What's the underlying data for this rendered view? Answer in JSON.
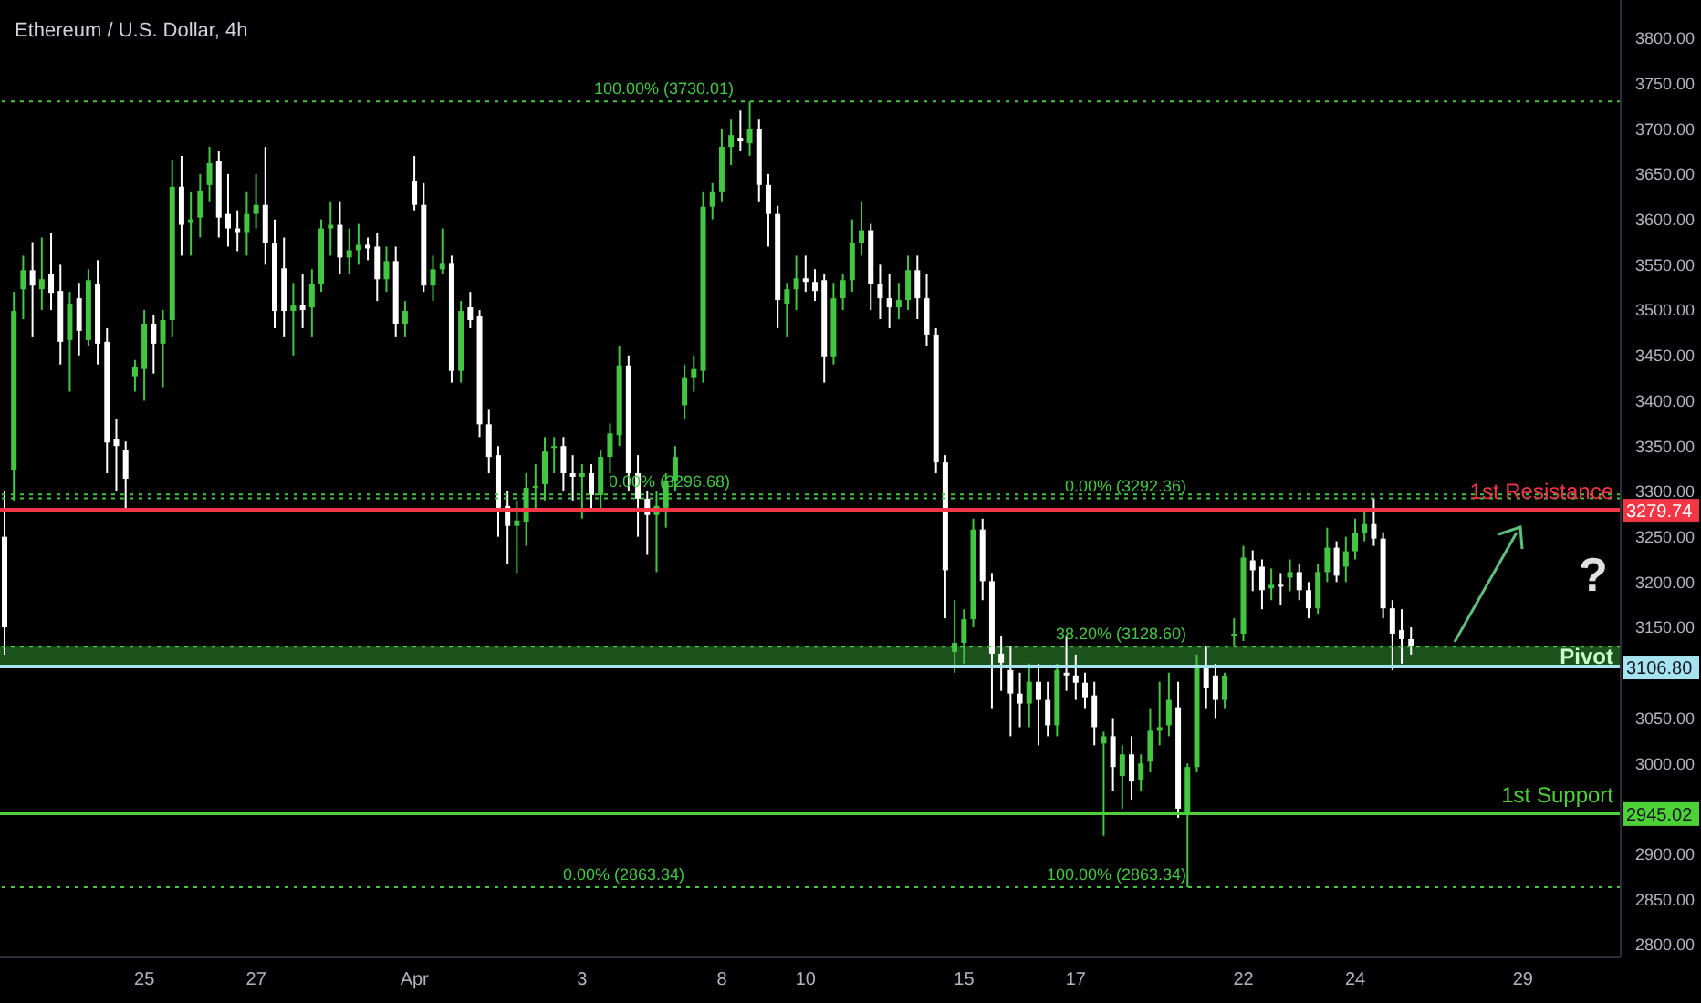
{
  "chart_data": {
    "type": "candlestick",
    "title": "Ethereum / U.S. Dollar, 4h",
    "categories": [
      null,
      null,
      null,
      null,
      null,
      null,
      null,
      null,
      null,
      null,
      null,
      null,
      null,
      null,
      null,
      "25",
      null,
      null,
      null,
      null,
      null,
      null,
      null,
      null,
      null,
      null,
      null,
      "27",
      null,
      null,
      null,
      null,
      null,
      null,
      null,
      null,
      null,
      null,
      null,
      null,
      null,
      null,
      null,
      null,
      "Apr",
      null,
      null,
      null,
      null,
      null,
      null,
      null,
      null,
      null,
      null,
      null,
      null,
      null,
      null,
      null,
      null,
      null,
      "3",
      null,
      null,
      null,
      null,
      null,
      null,
      null,
      null,
      null,
      null,
      null,
      null,
      null,
      null,
      "8",
      null,
      null,
      null,
      null,
      null,
      null,
      null,
      null,
      "10",
      null,
      null,
      null,
      null,
      null,
      null,
      null,
      null,
      null,
      null,
      null,
      null,
      null,
      null,
      null,
      null,
      "15",
      null,
      null,
      null,
      null,
      null,
      null,
      null,
      null,
      null,
      null,
      null,
      "17",
      null,
      null,
      null,
      null,
      null,
      null,
      null,
      null,
      null,
      null,
      null,
      null,
      null,
      null,
      null,
      null,
      null,
      "22",
      null,
      null,
      null,
      null,
      null,
      null,
      null,
      null,
      null,
      null,
      null,
      "24",
      null,
      null,
      null,
      null,
      null,
      null,
      null,
      null,
      null,
      null,
      null,
      null,
      null,
      null,
      null,
      null,
      null,
      "29",
      null,
      null,
      null,
      null,
      null,
      null,
      null,
      null,
      null,
      null
    ],
    "ohlc": [
      [
        3250,
        3300,
        3120,
        3150
      ],
      [
        3324,
        3520,
        3290,
        3499
      ],
      [
        3523,
        3560,
        3490,
        3544
      ],
      [
        3544,
        3575,
        3470,
        3527
      ],
      [
        3523,
        3580,
        3500,
        3534
      ],
      [
        3540,
        3585,
        3500,
        3519
      ],
      [
        3521,
        3550,
        3440,
        3465
      ],
      [
        3467,
        3520,
        3410,
        3507
      ],
      [
        3513,
        3530,
        3450,
        3477
      ],
      [
        3467,
        3545,
        3460,
        3533
      ],
      [
        3529,
        3555,
        3440,
        3463
      ],
      [
        3465,
        3480,
        3320,
        3354
      ],
      [
        3358,
        3380,
        3300,
        3350
      ],
      [
        3346,
        3355,
        3280,
        3314
      ],
      [
        3427,
        3445,
        3410,
        3437
      ],
      [
        3435,
        3500,
        3400,
        3485
      ],
      [
        3485,
        3495,
        3430,
        3463
      ],
      [
        3463,
        3500,
        3415,
        3489
      ],
      [
        3489,
        3665,
        3470,
        3636
      ],
      [
        3636,
        3670,
        3560,
        3594
      ],
      [
        3596,
        3630,
        3560,
        3600
      ],
      [
        3602,
        3650,
        3580,
        3632
      ],
      [
        3638,
        3680,
        3620,
        3662
      ],
      [
        3664,
        3675,
        3580,
        3602
      ],
      [
        3606,
        3650,
        3570,
        3590
      ],
      [
        3590,
        3610,
        3565,
        3586
      ],
      [
        3586,
        3630,
        3560,
        3606
      ],
      [
        3606,
        3650,
        3590,
        3616
      ],
      [
        3616,
        3680,
        3550,
        3574
      ],
      [
        3574,
        3600,
        3480,
        3499
      ],
      [
        3546,
        3580,
        3470,
        3499
      ],
      [
        3499,
        3530,
        3450,
        3505
      ],
      [
        3505,
        3540,
        3480,
        3500
      ],
      [
        3503,
        3545,
        3470,
        3529
      ],
      [
        3529,
        3600,
        3520,
        3590
      ],
      [
        3590,
        3620,
        3560,
        3594
      ],
      [
        3594,
        3620,
        3540,
        3558
      ],
      [
        3558,
        3590,
        3540,
        3566
      ],
      [
        3566,
        3595,
        3550,
        3572
      ],
      [
        3572,
        3580,
        3555,
        3568
      ],
      [
        3570,
        3585,
        3510,
        3534
      ],
      [
        3534,
        3570,
        3520,
        3554
      ],
      [
        3554,
        3570,
        3470,
        3485
      ],
      [
        3485,
        3510,
        3470,
        3499
      ],
      [
        3642,
        3670,
        3610,
        3616
      ],
      [
        3616,
        3640,
        3520,
        3527
      ],
      [
        3527,
        3560,
        3510,
        3545
      ],
      [
        3545,
        3590,
        3540,
        3552
      ],
      [
        3552,
        3560,
        3420,
        3433
      ],
      [
        3433,
        3510,
        3420,
        3499
      ],
      [
        3503,
        3520,
        3480,
        3489
      ],
      [
        3493,
        3500,
        3360,
        3374
      ],
      [
        3374,
        3390,
        3320,
        3338
      ],
      [
        3340,
        3350,
        3250,
        3282
      ],
      [
        3284,
        3300,
        3220,
        3262
      ],
      [
        3262,
        3290,
        3210,
        3268
      ],
      [
        3266,
        3320,
        3240,
        3304
      ],
      [
        3304,
        3330,
        3280,
        3306
      ],
      [
        3308,
        3360,
        3290,
        3344
      ],
      [
        3348,
        3360,
        3320,
        3350
      ],
      [
        3350,
        3360,
        3300,
        3320
      ],
      [
        3320,
        3340,
        3290,
        3316
      ],
      [
        3316,
        3330,
        3270,
        3320
      ],
      [
        3320,
        3330,
        3280,
        3296
      ],
      [
        3296,
        3345,
        3280,
        3338
      ],
      [
        3338,
        3375,
        3320,
        3364
      ],
      [
        3362,
        3460,
        3350,
        3439
      ],
      [
        3439,
        3450,
        3300,
        3320
      ],
      [
        3320,
        3340,
        3250,
        3292
      ],
      [
        3292,
        3300,
        3230,
        3274
      ],
      [
        3274,
        3300,
        3211,
        3284
      ],
      [
        3282,
        3320,
        3260,
        3312
      ],
      [
        3312,
        3350,
        3300,
        3338
      ],
      [
        3395,
        3440,
        3380,
        3425
      ],
      [
        3425,
        3450,
        3410,
        3435
      ],
      [
        3433,
        3630,
        3420,
        3614
      ],
      [
        3614,
        3640,
        3600,
        3630
      ],
      [
        3630,
        3700,
        3620,
        3680
      ],
      [
        3680,
        3710,
        3660,
        3693
      ],
      [
        3690,
        3720,
        3675,
        3686
      ],
      [
        3684,
        3730.01,
        3670,
        3700
      ],
      [
        3700,
        3710,
        3620,
        3638
      ],
      [
        3638,
        3650,
        3570,
        3606
      ],
      [
        3606,
        3615,
        3480,
        3511
      ],
      [
        3507,
        3530,
        3470,
        3523
      ],
      [
        3523,
        3560,
        3500,
        3535
      ],
      [
        3535,
        3560,
        3520,
        3531
      ],
      [
        3531,
        3545,
        3510,
        3521
      ],
      [
        3533,
        3540,
        3420,
        3449
      ],
      [
        3449,
        3530,
        3440,
        3513
      ],
      [
        3513,
        3540,
        3500,
        3533
      ],
      [
        3533,
        3600,
        3520,
        3574
      ],
      [
        3574,
        3620,
        3560,
        3588
      ],
      [
        3588,
        3595,
        3500,
        3529
      ],
      [
        3529,
        3550,
        3490,
        3513
      ],
      [
        3513,
        3540,
        3480,
        3503
      ],
      [
        3503,
        3530,
        3490,
        3511
      ],
      [
        3511,
        3560,
        3500,
        3544
      ],
      [
        3544,
        3560,
        3490,
        3513
      ],
      [
        3513,
        3540,
        3460,
        3473
      ],
      [
        3473,
        3480,
        3320,
        3332
      ],
      [
        3332,
        3340,
        3160,
        3213
      ],
      [
        3123,
        3180,
        3100,
        3133
      ],
      [
        3133,
        3170,
        3110,
        3159
      ],
      [
        3159,
        3270,
        3150,
        3258
      ],
      [
        3258,
        3270,
        3180,
        3201
      ],
      [
        3201,
        3210,
        3060,
        3121
      ],
      [
        3121,
        3140,
        3080,
        3111
      ],
      [
        3103,
        3130,
        3030,
        3077
      ],
      [
        3077,
        3100,
        3040,
        3066
      ],
      [
        3066,
        3110,
        3040,
        3090
      ],
      [
        3090,
        3110,
        3020,
        3070
      ],
      [
        3070,
        3090,
        3030,
        3042
      ],
      [
        3042,
        3110,
        3030,
        3103
      ],
      [
        3100,
        3140,
        3080,
        3097
      ],
      [
        3097,
        3120,
        3070,
        3089
      ],
      [
        3089,
        3100,
        3060,
        3073
      ],
      [
        3075,
        3090,
        3020,
        3040
      ],
      [
        3022,
        3035,
        2920,
        3030
      ],
      [
        3030,
        3050,
        2970,
        2996
      ],
      [
        2986,
        3020,
        2950,
        3010
      ],
      [
        3010,
        3030,
        2960,
        2980
      ],
      [
        2982,
        3010,
        2970,
        3000
      ],
      [
        3002,
        3060,
        2990,
        3036
      ],
      [
        3036,
        3090,
        3020,
        3040
      ],
      [
        3042,
        3100,
        3030,
        3070
      ],
      [
        3062,
        3090,
        2940,
        2950
      ],
      [
        2946,
        3000,
        2863.34,
        2996
      ],
      [
        2996,
        3120,
        2990,
        3107
      ],
      [
        3107,
        3130,
        3060,
        3083
      ],
      [
        3097,
        3110,
        3050,
        3070
      ],
      [
        3070,
        3100,
        3060,
        3097
      ],
      [
        3140,
        3160,
        3130,
        3143
      ],
      [
        3143,
        3240,
        3135,
        3227
      ],
      [
        3224,
        3235,
        3190,
        3213
      ],
      [
        3217,
        3225,
        3170,
        3191
      ],
      [
        3193,
        3215,
        3180,
        3197
      ],
      [
        3197,
        3210,
        3175,
        3195
      ],
      [
        3205,
        3225,
        3190,
        3211
      ],
      [
        3211,
        3220,
        3180,
        3191
      ],
      [
        3191,
        3200,
        3160,
        3171
      ],
      [
        3171,
        3220,
        3165,
        3211
      ],
      [
        3211,
        3260,
        3200,
        3238
      ],
      [
        3238,
        3245,
        3200,
        3207
      ],
      [
        3217,
        3250,
        3200,
        3234
      ],
      [
        3234,
        3270,
        3225,
        3254
      ],
      [
        3254,
        3280,
        3245,
        3264
      ],
      [
        3264,
        3292.36,
        3240,
        3248
      ],
      [
        3248,
        3255,
        3160,
        3171
      ],
      [
        3171,
        3180,
        3103,
        3143
      ],
      [
        3147,
        3170,
        3110,
        3137
      ],
      [
        3137,
        3150,
        3120,
        3129
      ],
      null,
      null,
      null,
      null,
      null,
      null,
      null,
      null,
      null,
      null,
      null,
      null,
      null,
      null,
      null,
      null,
      null,
      null,
      null,
      null,
      null,
      null
    ],
    "colors": [
      "#ffffff",
      "#43c743",
      "#43c743",
      "#ffffff",
      "#43c743",
      "#ffffff",
      "#ffffff",
      "#43c743",
      "#ffffff",
      "#43c743",
      "#ffffff",
      "#ffffff",
      "#ffffff",
      "#ffffff",
      "#43c743",
      "#43c743",
      "#ffffff",
      "#43c743",
      "#43c743",
      "#ffffff",
      "#43c743",
      "#43c743",
      "#43c743",
      "#ffffff",
      "#ffffff",
      "#ffffff",
      "#43c743",
      "#43c743",
      "#ffffff",
      "#ffffff",
      "#ffffff",
      "#43c743",
      "#ffffff",
      "#43c743",
      "#43c743",
      "#43c743",
      "#ffffff",
      "#43c743",
      "#43c743",
      "#ffffff",
      "#ffffff",
      "#43c743",
      "#ffffff",
      "#43c743",
      "#ffffff",
      "#ffffff",
      "#43c743",
      "#43c743",
      "#ffffff",
      "#43c743",
      "#ffffff",
      "#ffffff",
      "#ffffff",
      "#ffffff",
      "#ffffff",
      "#43c743",
      "#43c743",
      "#43c743",
      "#43c743",
      "#43c743",
      "#ffffff",
      "#ffffff",
      "#43c743",
      "#ffffff",
      "#43c743",
      "#43c743",
      "#43c743",
      "#ffffff",
      "#ffffff",
      "#ffffff",
      "#43c743",
      "#43c743",
      "#43c743",
      "#43c743",
      "#43c743",
      "#43c743",
      "#43c743",
      "#43c743",
      "#43c743",
      "#ffffff",
      "#43c743",
      "#ffffff",
      "#ffffff",
      "#ffffff",
      "#43c743",
      "#43c743",
      "#ffffff",
      "#ffffff",
      "#ffffff",
      "#43c743",
      "#43c743",
      "#43c743",
      "#43c743",
      "#ffffff",
      "#ffffff",
      "#ffffff",
      "#43c743",
      "#43c743",
      "#ffffff",
      "#ffffff",
      "#ffffff",
      "#ffffff",
      "#43c743",
      "#43c743",
      "#43c743",
      "#ffffff",
      "#ffffff",
      "#ffffff",
      "#ffffff",
      "#ffffff",
      "#43c743",
      "#ffffff",
      "#ffffff",
      "#43c743",
      "#ffffff",
      "#ffffff",
      "#ffffff",
      "#ffffff",
      "#43c743",
      "#ffffff",
      "#43c743",
      "#ffffff",
      "#43c743",
      "#43c743",
      "#43c743",
      "#43c743",
      "#ffffff",
      "#43c743",
      "#43c743",
      "#ffffff",
      "#ffffff",
      "#43c743",
      "#43c743",
      "#43c743",
      "#ffffff",
      "#ffffff",
      "#43c743",
      "#ffffff",
      "#43c743",
      "#ffffff",
      "#ffffff",
      "#43c743",
      "#43c743",
      "#ffffff",
      "#43c743",
      "#43c743",
      "#43c743",
      "#ffffff",
      "#ffffff",
      "#ffffff",
      "#ffffff",
      "#ffffff",
      null,
      null,
      null,
      null,
      null,
      null,
      null,
      null,
      null,
      null,
      null,
      null,
      null,
      null,
      null,
      null,
      null,
      null,
      null,
      null,
      null,
      null
    ],
    "ylim": [
      2786,
      3842
    ],
    "yticks": [
      {
        "value": 2800,
        "label": "2800.00"
      },
      {
        "value": 2850,
        "label": "2850.00"
      },
      {
        "value": 2900,
        "label": "2900.00"
      },
      {
        "value": 3000,
        "label": "3000.00"
      },
      {
        "value": 3050,
        "label": "3050.00"
      },
      {
        "value": 3150,
        "label": "3150.00"
      },
      {
        "value": 3200,
        "label": "3200.00"
      },
      {
        "value": 3250,
        "label": "3250.00"
      },
      {
        "value": 3300,
        "label": "3300.00"
      },
      {
        "value": 3350,
        "label": "3350.00"
      },
      {
        "value": 3400,
        "label": "3400.00"
      },
      {
        "value": 3450,
        "label": "3450.00"
      },
      {
        "value": 3500,
        "label": "3500.00"
      },
      {
        "value": 3550,
        "label": "3550.00"
      },
      {
        "value": 3600,
        "label": "3600.00"
      },
      {
        "value": 3650,
        "label": "3650.00"
      },
      {
        "value": 3700,
        "label": "3700.00"
      },
      {
        "value": 3750,
        "label": "3750.00"
      },
      {
        "value": 3800,
        "label": "3800.00"
      }
    ],
    "ref_lines": [
      {
        "axis": "y",
        "value": 3730.01,
        "label": "100.00% (3730.01)",
        "color": "#43c743",
        "line_style": "dotted"
      },
      {
        "axis": "y",
        "value": 3296.68,
        "label": "0.00% (3296.68)",
        "color": "#43c743",
        "line_style": "dotted"
      },
      {
        "axis": "y",
        "value": 3292.36,
        "label": "0.00% (3292.36)",
        "color": "#43c743",
        "line_style": "dotted"
      },
      {
        "axis": "y",
        "value": 3128.6,
        "label": "38.20% (3128.60)",
        "color": "#43c743",
        "line_style": "dotted"
      },
      {
        "axis": "y",
        "value": 2863.34,
        "label": "0.00% (2863.34)",
        "color": "#43c743",
        "line_style": "dotted"
      },
      {
        "axis": "y",
        "value": 3279.74,
        "label": "1st Resistance",
        "color": "#f23645",
        "line_style": "solid"
      },
      {
        "axis": "y",
        "value": 3106.8,
        "label": null,
        "color": "#a6e3f0",
        "line_style": "solid"
      },
      {
        "axis": "y",
        "value": 2945.02,
        "label": "1st Support",
        "color": "#4cd137",
        "line_style": "solid"
      }
    ],
    "bands": [
      {
        "axis": "y",
        "from": 3106.8,
        "to": 3128.6,
        "label": "Pivot",
        "color": "#1f5c1f"
      }
    ],
    "annotations": [
      "?",
      {
        "text": "100.00% (2863.34)",
        "y": 2863.34
      },
      {
        "text": "3279.74",
        "y": 3279.74
      },
      {
        "text": "3106.80",
        "y": 3106.8
      },
      {
        "text": "2945.02",
        "y": 2945.02
      }
    ]
  }
}
